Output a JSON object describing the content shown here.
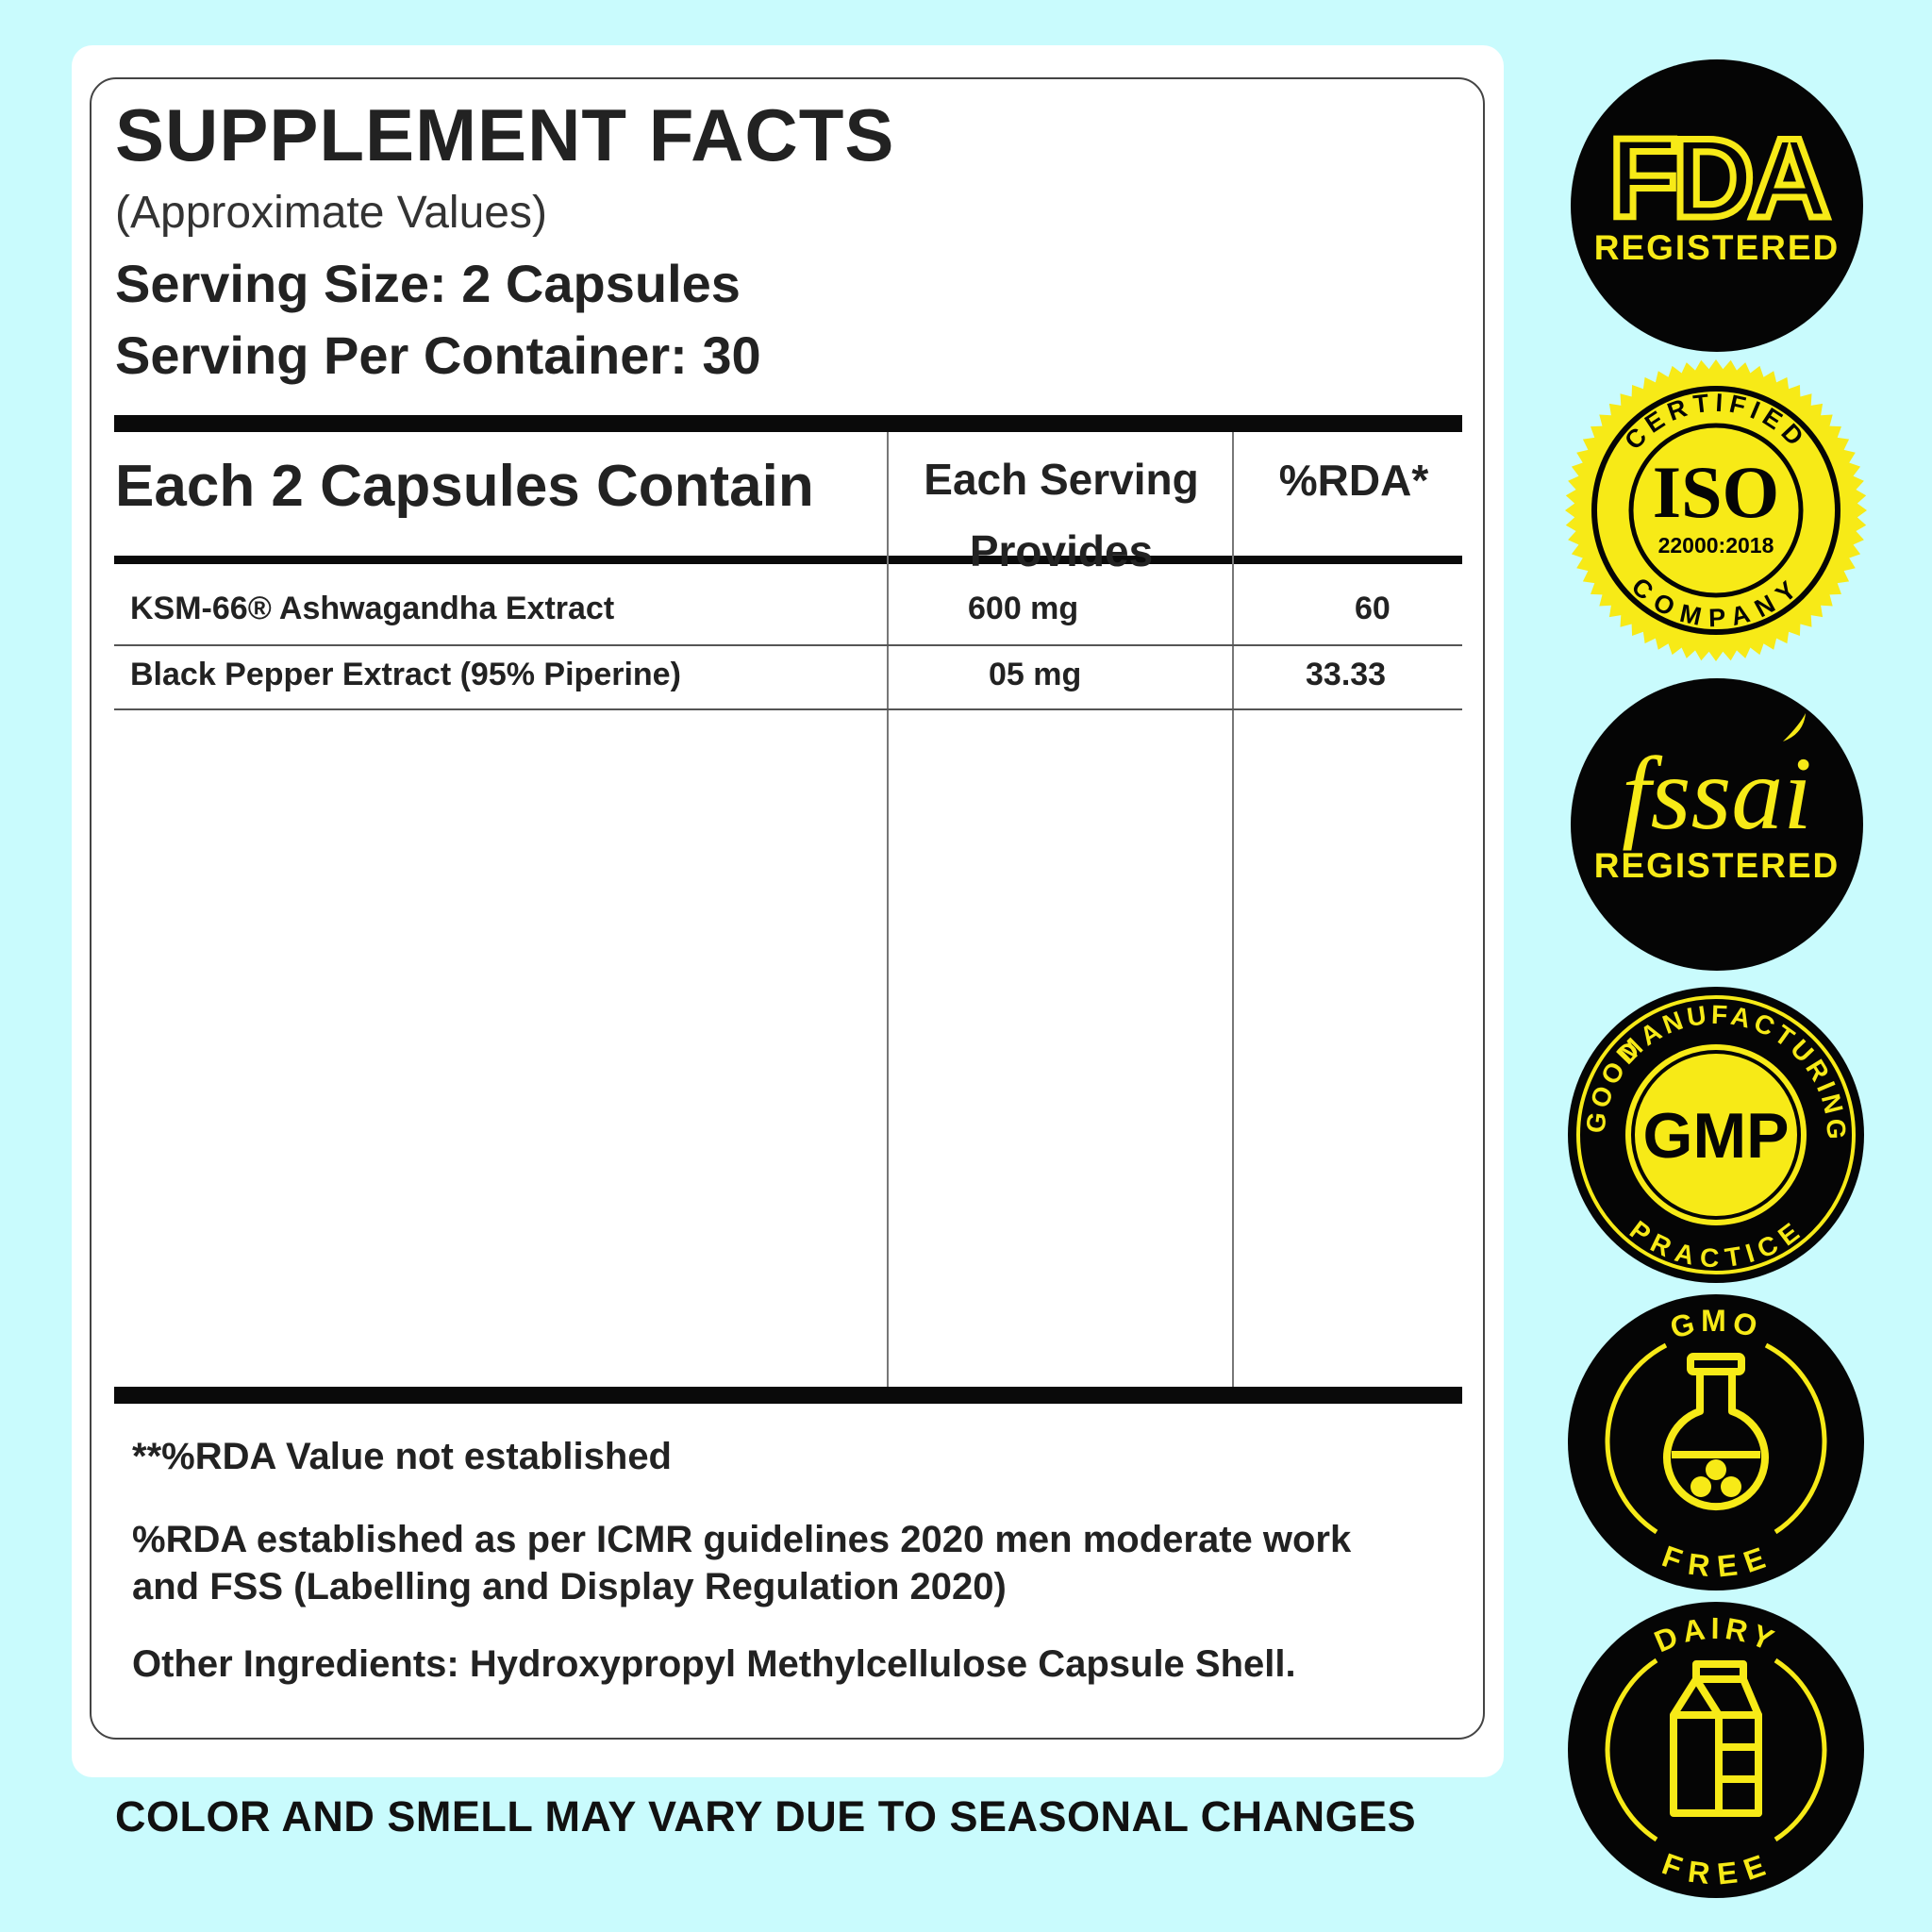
{
  "panel": {
    "title": "SUPPLEMENT FACTS",
    "subtitle": "(Approximate Values)",
    "serving_size": "Serving Size: 2 Capsules",
    "servings_per_container": "Serving Per Container: 30"
  },
  "table": {
    "header_col1": "Each 2 Capsules Contain",
    "header_col2_line1": "Each Serving",
    "header_col2_line2": "Provides",
    "header_col3": "%RDA*",
    "rows": [
      {
        "name": "KSM-66® Ashwagandha Extract",
        "amount": "600 mg",
        "rda": "60"
      },
      {
        "name": "Black Pepper Extract (95% Piperine)",
        "amount": "05 mg",
        "rda": "33.33"
      }
    ]
  },
  "footnotes": {
    "rda_not_established": "**%RDA Value not established",
    "rda_basis_line1": "%RDA established as per ICMR guidelines 2020 men moderate work",
    "rda_basis_line2": "and FSS (Labelling and Display Regulation 2020)",
    "other_ingredients": "Other Ingredients: Hydroxypropyl Methylcellulose Capsule Shell."
  },
  "seasonal_note": "COLOR AND SMELL MAY VARY DUE TO SEASONAL CHANGES",
  "badges": {
    "fda": {
      "logo": "FDA",
      "label": "REGISTERED",
      "icon": "fda-logo"
    },
    "iso": {
      "top": "CERTIFIED",
      "main": "ISO",
      "code": "22000:2018",
      "bottom": "COMPANY",
      "icon": "iso-seal"
    },
    "fssai": {
      "logo": "fssai",
      "label": "REGISTERED",
      "icon": "fssai-logo"
    },
    "gmp": {
      "top": "MANUFACTURING",
      "left": "GOOD",
      "bottom": "PRACTICE",
      "main": "GMP",
      "icon": "gmp-seal"
    },
    "gmo": {
      "top": "GMO",
      "bottom": "FREE",
      "icon": "flask-icon"
    },
    "dairy": {
      "top": "DAIRY",
      "bottom": "FREE",
      "icon": "milk-carton-icon"
    }
  },
  "colors": {
    "background": "#c9fbfd",
    "badge_black": "#050505",
    "badge_yellow": "#f7ea17"
  }
}
